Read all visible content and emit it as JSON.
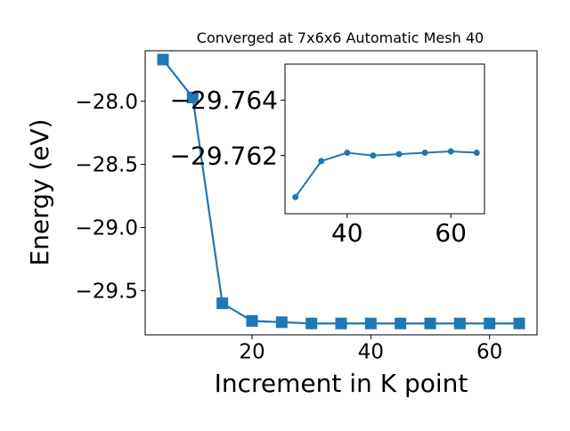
{
  "chart_data": [
    {
      "id": "main",
      "type": "line",
      "title": "Converged at 7x6x6 Automatic Mesh 40",
      "xlabel": "Increment in K point",
      "ylabel": "Energy (eV)",
      "x": [
        5,
        10,
        15,
        20,
        25,
        30,
        35,
        40,
        45,
        50,
        55,
        60,
        65
      ],
      "series": [
        {
          "values": [
            -27.67,
            -27.97,
            -29.6,
            -29.74,
            -29.75,
            -29.76,
            -29.76,
            -29.76,
            -29.76,
            -29.76,
            -29.76,
            -29.76,
            -29.76
          ],
          "color": "#1f77b4",
          "marker": "square"
        }
      ],
      "xlim": [
        2,
        68
      ],
      "ylim": [
        -29.85,
        -27.6
      ],
      "xticks": [
        20,
        40,
        60
      ],
      "xtick_labels": [
        "20",
        "40",
        "60"
      ],
      "yticks": [
        -28.0,
        -28.5,
        -29.0,
        -29.5
      ],
      "ytick_labels": [
        "−28.0",
        "−28.5",
        "−29.0",
        "−29.5"
      ],
      "grid": false
    },
    {
      "id": "inset",
      "type": "line",
      "x": [
        30,
        35,
        40,
        45,
        50,
        55,
        60,
        65
      ],
      "series": [
        {
          "values": [
            -29.7605,
            -29.7618,
            -29.7621,
            -29.762,
            -29.76205,
            -29.7621,
            -29.76215,
            -29.7621
          ],
          "color": "#1f77b4",
          "marker": "circle"
        }
      ],
      "xlim": [
        28,
        66.5
      ],
      "ylim": [
        -29.7599,
        -29.7653
      ],
      "xticks": [
        40,
        60
      ],
      "xtick_labels": [
        "40",
        "60"
      ],
      "yticks": [
        -29.764,
        -29.762
      ],
      "ytick_labels": [
        "−29.764",
        "−29.762"
      ],
      "grid": false
    }
  ]
}
